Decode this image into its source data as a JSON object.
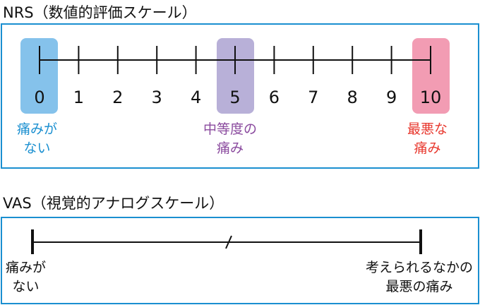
{
  "nrs": {
    "title": "NRS（数値的評価スケール）",
    "numbers": [
      "0",
      "1",
      "2",
      "3",
      "4",
      "5",
      "6",
      "7",
      "8",
      "9",
      "10"
    ],
    "labels": {
      "none": [
        "痛みが",
        "ない"
      ],
      "moderate": [
        "中等度の",
        "痛み"
      ],
      "worst": [
        "最悪な",
        "痛み"
      ]
    },
    "colors": {
      "border": "#1a8fd0",
      "none_bg": "#85c2eb",
      "moderate_bg": "#b8b0d8",
      "worst_bg": "#f29cb3",
      "none_text": "#1a8fd0",
      "moderate_text": "#8a4a9e",
      "worst_text": "#e8382e"
    }
  },
  "vas": {
    "title": "VAS（視覚的アナログスケール）",
    "left_label": [
      "痛みが",
      "ない"
    ],
    "right_label": [
      "考えられるなかの",
      "最悪の痛み"
    ]
  }
}
